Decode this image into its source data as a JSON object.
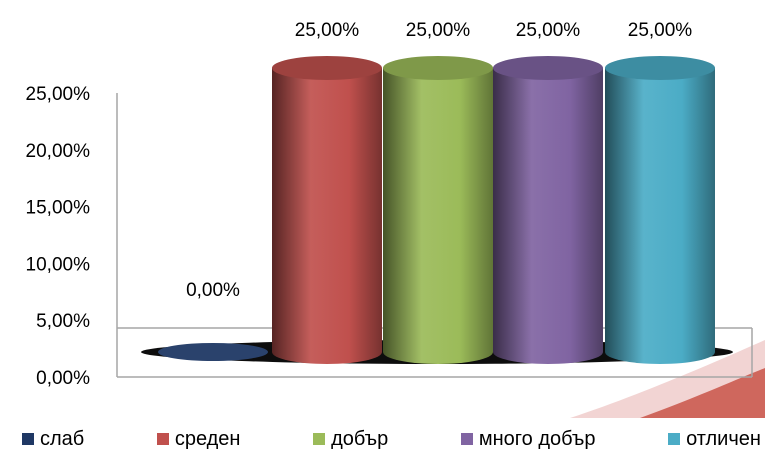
{
  "chart_data": {
    "type": "bar",
    "style": "3d-cylinder",
    "categories": [
      "слаб",
      "среден",
      "добър",
      "много добър",
      "отличен"
    ],
    "values": [
      0,
      25,
      25,
      25,
      25
    ],
    "data_labels": [
      "0,00%",
      "25,00%",
      "25,00%",
      "25,00%",
      "25,00%"
    ],
    "colors": [
      "#1F3864",
      "#C0504D",
      "#9BBB59",
      "#8064A2",
      "#4BACC6"
    ],
    "yticks": [
      "0,00%",
      "5,00%",
      "10,00%",
      "15,00%",
      "20,00%",
      "25,00%"
    ],
    "ylim": [
      0,
      25
    ],
    "grid": false,
    "legend_position": "bottom"
  }
}
